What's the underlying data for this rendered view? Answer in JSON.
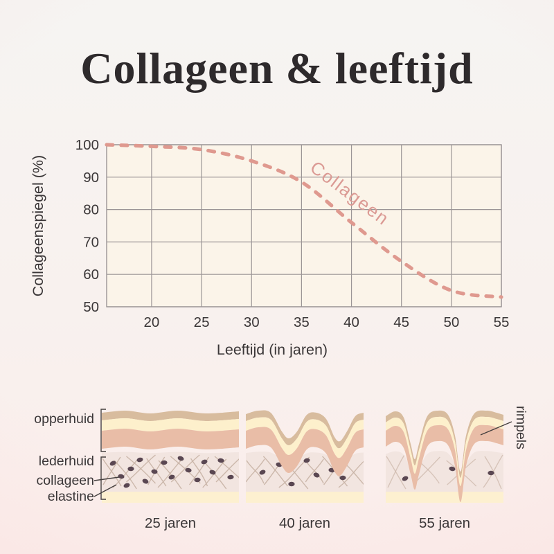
{
  "title": "Collageen & leeftijd",
  "chart_data": {
    "type": "line",
    "title": "",
    "xlabel": "Leeftijd (in jaren)",
    "ylabel": "Collageenspiegel (%)",
    "xlim": [
      15.5,
      55
    ],
    "ylim": [
      50,
      100
    ],
    "xticks": [
      20,
      25,
      30,
      35,
      40,
      45,
      50,
      55
    ],
    "yticks": [
      50,
      60,
      70,
      80,
      90,
      100
    ],
    "grid": true,
    "legend_position": "none",
    "series": [
      {
        "name": "Collageen",
        "style": "dashed",
        "color": "#df998f",
        "x": [
          15.5,
          20,
          25,
          30,
          35,
          40,
          45,
          50,
          55
        ],
        "y": [
          100,
          99.5,
          98.5,
          95,
          88.5,
          76,
          64,
          55,
          53
        ]
      }
    ],
    "curve_label": {
      "text": "Collageen",
      "x": 39.5,
      "y": 83.5,
      "rotation_deg": 37
    }
  },
  "skin_diagram": {
    "left_labels": [
      "opperhuid",
      "lederhuid",
      "collageen",
      "elastine"
    ],
    "right_label": "rimpels",
    "panels": [
      {
        "caption": "25 jaren"
      },
      {
        "caption": "40 jaren"
      },
      {
        "caption": "55 jaren"
      }
    ]
  },
  "colors": {
    "text": "#3b3738",
    "title_text": "#2e2a2c",
    "grid": "#9b9596",
    "plot_bg": "#fbf4e9",
    "curve": "#df998f",
    "curve_label": "#db9a94",
    "pointer": "#45403f",
    "skin_tan": "#d8bc9e",
    "skin_cream": "#fdf0cc",
    "skin_salmon": "#e9bda7",
    "skin_dermis": "#f2e5e0",
    "skin_fiber": "#c8b2a5",
    "skin_dot": "#5a4752",
    "skin_bottom": "#fdf0d0"
  }
}
